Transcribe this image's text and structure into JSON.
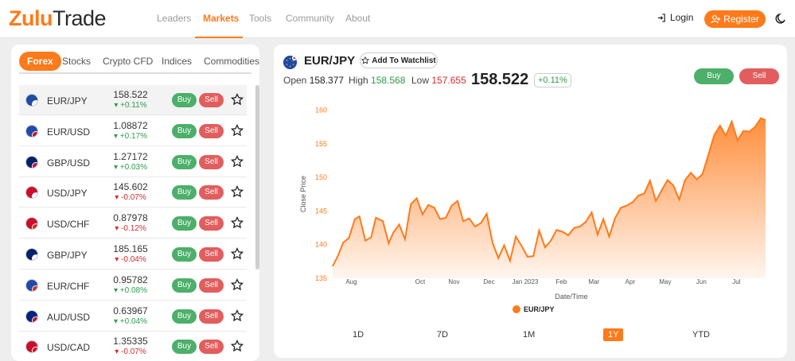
{
  "nav": {
    "logo_main": "Zulu",
    "logo_accent": "Trade",
    "items": [
      "Leaders",
      "Markets",
      "Tools",
      "Community",
      "About"
    ],
    "active": "Markets",
    "login": "Login",
    "register": "Register"
  },
  "colors": {
    "accent": "#ff7a1a",
    "buy": "#4caf6a",
    "sell": "#e25d5d",
    "up": "#2e9c4a",
    "down": "#d42b2b"
  },
  "tabs": [
    "Forex",
    "Stocks",
    "Crypto CFD",
    "Indices",
    "Commodities"
  ],
  "pairs": [
    {
      "symbol": "EUR/JPY",
      "price": "158.522",
      "change": "+0.11%",
      "dir": "up"
    },
    {
      "symbol": "EUR/USD",
      "price": "1.08872",
      "change": "+0.17%",
      "dir": "up"
    },
    {
      "symbol": "GBP/USD",
      "price": "1.27172",
      "change": "+0.03%",
      "dir": "up"
    },
    {
      "symbol": "USD/JPY",
      "price": "145.602",
      "change": "-0.07%",
      "dir": "down"
    },
    {
      "symbol": "USD/CHF",
      "price": "0.87978",
      "change": "-0.12%",
      "dir": "down"
    },
    {
      "symbol": "GBP/JPY",
      "price": "185.165",
      "change": "-0.04%",
      "dir": "down"
    },
    {
      "symbol": "EUR/CHF",
      "price": "0.95782",
      "change": "+0.08%",
      "dir": "up"
    },
    {
      "symbol": "AUD/USD",
      "price": "0.63967",
      "change": "+0.04%",
      "dir": "up"
    },
    {
      "symbol": "USD/CAD",
      "price": "1.35335",
      "change": "-0.07%",
      "dir": "down"
    }
  ],
  "buttons": {
    "buy": "Buy",
    "sell": "Sell"
  },
  "detail": {
    "pair": "EUR/JPY",
    "watchlist": "Add To Watchlist",
    "open_label": "Open",
    "open": "158.377",
    "high_label": "High",
    "high": "158.568",
    "low_label": "Low",
    "low": "157.655",
    "price": "158.522",
    "change": "+0.11%",
    "buy": "Buy",
    "sell": "Sell"
  },
  "ranges": [
    "1D",
    "7D",
    "1M",
    "1Y",
    "YTD"
  ],
  "active_range": "1Y",
  "chart_data": {
    "type": "area",
    "title": "",
    "xlabel": "Date/Time",
    "ylabel": "Close Price",
    "legend": "EUR/JPY",
    "legend_position": "bottom",
    "ylim": [
      135,
      161
    ],
    "yticks": [
      135,
      140,
      145,
      150,
      155,
      160
    ],
    "xticks": [
      "Aug",
      "Oct",
      "Nov",
      "Dec",
      "Jan 2023",
      "Feb",
      "Mar",
      "Apr",
      "May",
      "Jun",
      "Jul"
    ],
    "grid": false,
    "series": [
      {
        "name": "EUR/JPY",
        "x": [
          "2022-07-20",
          "2022-07-25",
          "2022-07-29",
          "2022-08-03",
          "2022-08-08",
          "2022-08-12",
          "2022-08-17",
          "2022-08-22",
          "2022-08-26",
          "2022-09-01",
          "2022-09-06",
          "2022-09-10",
          "2022-09-15",
          "2022-09-20",
          "2022-09-25",
          "2022-09-30",
          "2022-10-05",
          "2022-10-10",
          "2022-10-15",
          "2022-10-20",
          "2022-10-25",
          "2022-10-30",
          "2022-11-04",
          "2022-11-09",
          "2022-11-14",
          "2022-11-19",
          "2022-11-24",
          "2022-11-29",
          "2022-12-04",
          "2022-12-09",
          "2022-12-14",
          "2022-12-19",
          "2022-12-24",
          "2022-12-29",
          "2023-01-03",
          "2023-01-08",
          "2023-01-13",
          "2023-01-18",
          "2023-01-23",
          "2023-01-28",
          "2023-02-02",
          "2023-02-07",
          "2023-02-12",
          "2023-02-17",
          "2023-02-22",
          "2023-02-27",
          "2023-03-04",
          "2023-03-09",
          "2023-03-14",
          "2023-03-19",
          "2023-03-24",
          "2023-03-29",
          "2023-04-03",
          "2023-04-08",
          "2023-04-13",
          "2023-04-18",
          "2023-04-23",
          "2023-04-28",
          "2023-05-03",
          "2023-05-08",
          "2023-05-13",
          "2023-05-18",
          "2023-05-23",
          "2023-05-28",
          "2023-06-02",
          "2023-06-07",
          "2023-06-12",
          "2023-06-17",
          "2023-06-22",
          "2023-06-27",
          "2023-07-02",
          "2023-07-07",
          "2023-07-12",
          "2023-07-17",
          "2023-07-22",
          "2023-07-26"
        ],
        "values": [
          136.8,
          138.5,
          140.3,
          141.0,
          143.8,
          144.2,
          140.6,
          141.1,
          144.0,
          143.5,
          140.2,
          141.8,
          143.0,
          140.8,
          146.0,
          146.9,
          144.5,
          145.9,
          145.5,
          143.8,
          144.0,
          145.8,
          146.5,
          143.5,
          143.9,
          142.7,
          143.2,
          144.6,
          140.3,
          138.0,
          139.9,
          137.6,
          141.2,
          139.8,
          138.2,
          138.3,
          142.1,
          139.6,
          140.6,
          142.2,
          141.9,
          141.4,
          142.5,
          142.7,
          143.4,
          144.8,
          141.5,
          143.8,
          141.2,
          143.9,
          145.5,
          145.8,
          146.3,
          147.3,
          147.6,
          149.5,
          146.5,
          148.1,
          149.6,
          148.8,
          146.7,
          149.6,
          150.7,
          149.7,
          150.5,
          153.4,
          156.3,
          157.7,
          156.2,
          158.3,
          155.5,
          156.9,
          156.8,
          157.5,
          158.8,
          158.5
        ]
      }
    ]
  }
}
